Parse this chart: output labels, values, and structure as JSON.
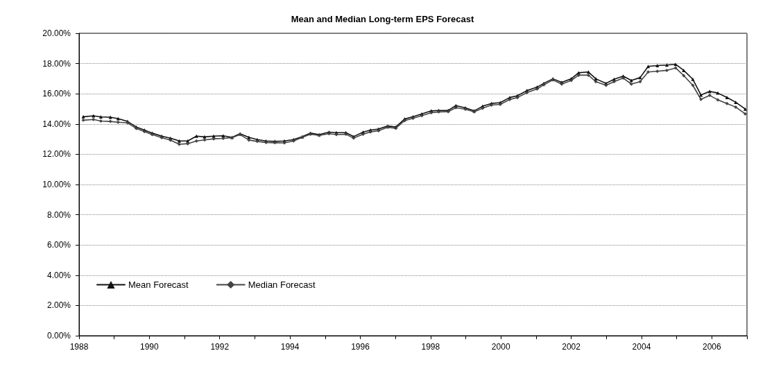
{
  "chart_data": {
    "type": "line",
    "title": "Mean and Median Long-term EPS Forecast",
    "xlim": [
      1988,
      2007
    ],
    "xticks": [
      1988,
      {
        "value": 1989,
        "label": null
      },
      1990,
      {
        "value": 1991,
        "label": null
      },
      1992,
      {
        "value": 1993,
        "label": null
      },
      1994,
      {
        "value": 1995,
        "label": null
      },
      1996,
      {
        "value": 1997,
        "label": null
      },
      1998,
      {
        "value": 1999,
        "label": null
      },
      2000,
      {
        "value": 2001,
        "label": null
      },
      2002,
      {
        "value": 2003,
        "label": null
      },
      2004,
      {
        "value": 2005,
        "label": null
      },
      2006,
      {
        "value": 2007,
        "label": null
      }
    ],
    "ylim": [
      0,
      20
    ],
    "yticks": [
      {
        "value": 0,
        "label": "0.00%"
      },
      {
        "value": 2,
        "label": "2.00%"
      },
      {
        "value": 4,
        "label": "4.00%"
      },
      {
        "value": 6,
        "label": "6.00%"
      },
      {
        "value": 8,
        "label": "8.00%"
      },
      {
        "value": 10,
        "label": "10.00%"
      },
      {
        "value": 12,
        "label": "12.00%"
      },
      {
        "value": 14,
        "label": "14.00%"
      },
      {
        "value": 16,
        "label": "16.00%"
      },
      {
        "value": 18,
        "label": "18.00%"
      },
      {
        "value": 20,
        "label": "20.00%"
      }
    ],
    "x": [
      1988.12,
      1988.41,
      1988.62,
      1988.89,
      1989.11,
      1989.38,
      1989.63,
      1989.86,
      1990.08,
      1990.35,
      1990.6,
      1990.85,
      1991.09,
      1991.34,
      1991.57,
      1991.83,
      1992.1,
      1992.35,
      1992.58,
      1992.83,
      1993.07,
      1993.32,
      1993.57,
      1993.84,
      1994.1,
      1994.35,
      1994.58,
      1994.83,
      1995.11,
      1995.32,
      1995.59,
      1995.81,
      1996.08,
      1996.29,
      1996.52,
      1996.78,
      1997.01,
      1997.26,
      1997.5,
      1997.75,
      1998.02,
      1998.23,
      1998.5,
      1998.72,
      1998.99,
      1999.24,
      1999.48,
      1999.73,
      1999.98,
      2000.25,
      2000.47,
      2000.74,
      2001.03,
      2001.22,
      2001.48,
      2001.73,
      2002.0,
      2002.21,
      2002.49,
      2002.7,
      2002.99,
      2003.22,
      2003.48,
      2003.71,
      2003.96,
      2004.19,
      2004.45,
      2004.72,
      2004.97,
      2005.2,
      2005.46,
      2005.69,
      2005.94,
      2006.17,
      2006.43,
      2006.68,
      2006.95
    ],
    "series": [
      {
        "name": "Mean Forecast",
        "color": "#111111",
        "marker": "triangle",
        "values": [
          14.48,
          14.54,
          14.47,
          14.45,
          14.36,
          14.17,
          13.8,
          13.6,
          13.4,
          13.2,
          13.06,
          12.88,
          12.88,
          13.2,
          13.15,
          13.2,
          13.22,
          13.12,
          13.36,
          13.12,
          12.97,
          12.88,
          12.85,
          12.88,
          12.97,
          13.17,
          13.4,
          13.3,
          13.46,
          13.43,
          13.43,
          13.17,
          13.46,
          13.6,
          13.67,
          13.87,
          13.8,
          14.33,
          14.48,
          14.67,
          14.87,
          14.9,
          14.9,
          15.22,
          15.07,
          14.87,
          15.18,
          15.36,
          15.41,
          15.75,
          15.87,
          16.21,
          16.44,
          16.69,
          16.99,
          16.75,
          16.99,
          17.39,
          17.44,
          16.99,
          16.69,
          16.96,
          17.17,
          16.88,
          17.07,
          17.81,
          17.87,
          17.9,
          17.95,
          17.55,
          16.96,
          15.92,
          16.16,
          16.05,
          15.76,
          15.44,
          14.99
        ]
      },
      {
        "name": "Median Forecast",
        "color": "#444444",
        "marker": "diamond",
        "values": [
          14.25,
          14.3,
          14.2,
          14.17,
          14.12,
          14.08,
          13.7,
          13.5,
          13.3,
          13.1,
          12.94,
          12.66,
          12.7,
          12.88,
          12.95,
          13.02,
          13.05,
          13.1,
          13.3,
          12.94,
          12.85,
          12.78,
          12.76,
          12.75,
          12.88,
          13.12,
          13.33,
          13.25,
          13.36,
          13.3,
          13.32,
          13.07,
          13.33,
          13.48,
          13.56,
          13.78,
          13.72,
          14.22,
          14.38,
          14.55,
          14.75,
          14.8,
          14.82,
          15.08,
          14.98,
          14.8,
          15.05,
          15.25,
          15.3,
          15.62,
          15.75,
          16.08,
          16.32,
          16.59,
          16.91,
          16.64,
          16.88,
          17.23,
          17.23,
          16.8,
          16.56,
          16.8,
          17.04,
          16.64,
          16.8,
          17.44,
          17.49,
          17.55,
          17.71,
          17.2,
          16.56,
          15.63,
          15.89,
          15.6,
          15.36,
          15.12,
          14.67
        ]
      }
    ],
    "grid": "y",
    "legend": "bottom left",
    "line_style": "solid"
  }
}
